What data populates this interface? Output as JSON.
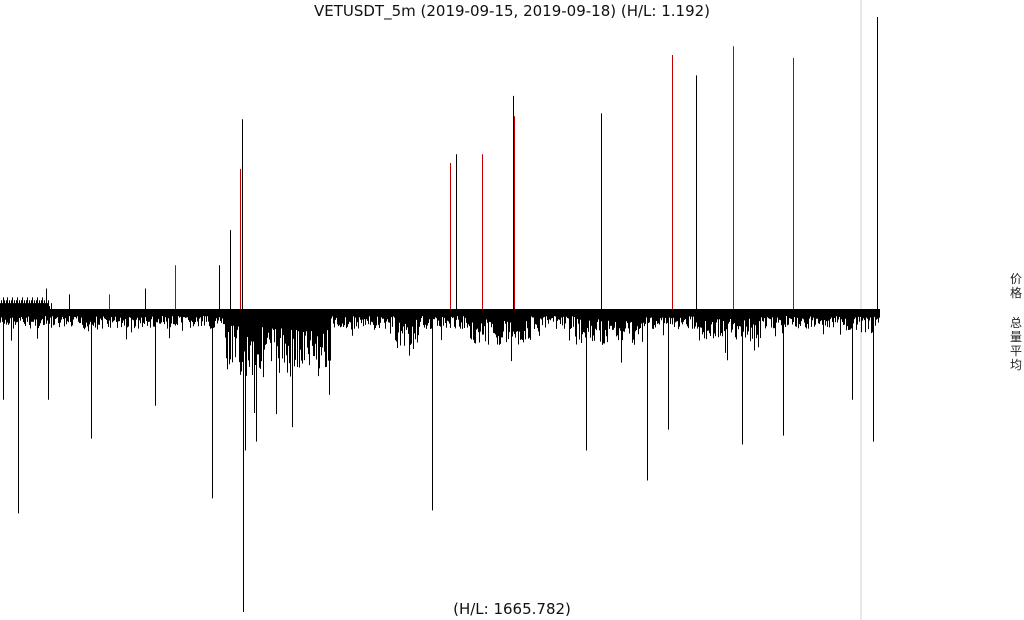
{
  "title": "VETUSDT_5m (2019-09-15, 2019-09-18) (H/L: 1.192)",
  "footer": "(H/L: 1665.782)",
  "side_labels": {
    "price": "价格",
    "volume": "总量平均"
  },
  "colors": {
    "up": "#000000",
    "down": "#c00000",
    "baseline": "#000000",
    "divider": "#d0d0d0"
  },
  "chart_data": [
    {
      "type": "bar",
      "panel": "price",
      "title": "VETUSDT_5m (2019-09-15, 2019-09-18) (H/L: 1.192)",
      "ylim": [
        0,
        1
      ],
      "values": [
        0.02,
        0.03,
        0.02,
        0.04,
        0.03,
        0.02,
        0.03,
        0.04,
        0.02,
        0.03,
        0.02,
        0.03,
        0.04,
        0.02,
        0.03,
        0.02,
        0.03,
        0.04,
        0.02,
        0.03,
        0.02,
        0.03,
        0.04,
        0.02,
        0.03,
        0.02,
        0.03,
        0.04,
        0.02,
        0.03,
        0.02,
        0.03,
        0.04,
        0.02,
        0.03,
        0.02,
        0.03,
        0.04,
        0.02,
        0.03,
        0.02,
        0.03,
        0.04,
        0.02,
        0.03,
        0.02,
        0.07,
        0.02,
        0.03,
        0.01,
        0.0,
        0.02
      ],
      "spikes": [
        {
          "i": 69,
          "v": 0.05,
          "c": "up"
        },
        {
          "i": 109,
          "v": 0.05,
          "c": "down"
        },
        {
          "i": 145,
          "v": 0.07,
          "c": "up"
        },
        {
          "i": 175,
          "v": 0.15,
          "c": "down"
        },
        {
          "i": 219,
          "v": 0.15,
          "c": "up"
        },
        {
          "i": 230,
          "v": 0.27,
          "c": "up"
        },
        {
          "i": 240,
          "v": 0.48,
          "c": "down"
        },
        {
          "i": 242,
          "v": 0.65,
          "c": "up"
        },
        {
          "i": 450,
          "v": 0.5,
          "c": "down"
        },
        {
          "i": 456,
          "v": 0.53,
          "c": "up"
        },
        {
          "i": 482,
          "v": 0.53,
          "c": "down"
        },
        {
          "i": 513,
          "v": 0.73,
          "c": "up"
        },
        {
          "i": 514,
          "v": 0.66,
          "c": "down"
        },
        {
          "i": 601,
          "v": 0.67,
          "c": "up"
        },
        {
          "i": 672,
          "v": 0.87,
          "c": "down"
        },
        {
          "i": 696,
          "v": 0.8,
          "c": "up"
        },
        {
          "i": 733,
          "v": 0.9,
          "c": "down"
        },
        {
          "i": 793,
          "v": 0.86,
          "c": "down"
        },
        {
          "i": 877,
          "v": 1.0,
          "c": "up"
        }
      ]
    },
    {
      "type": "bar",
      "panel": "volume",
      "title": "(H/L: 1665.782)",
      "ylim": [
        0,
        1
      ],
      "noise_seed": 7,
      "base_level": 0.04,
      "regions": [
        {
          "from": 225,
          "to": 330,
          "level": 0.16
        },
        {
          "from": 395,
          "to": 420,
          "level": 0.09
        },
        {
          "from": 470,
          "to": 530,
          "level": 0.08
        },
        {
          "from": 575,
          "to": 640,
          "level": 0.08
        },
        {
          "from": 700,
          "to": 760,
          "level": 0.07
        },
        {
          "from": 840,
          "to": 880,
          "level": 0.05
        }
      ],
      "spikes": [
        {
          "i": 3,
          "v": 0.29
        },
        {
          "i": 18,
          "v": 0.67
        },
        {
          "i": 48,
          "v": 0.29
        },
        {
          "i": 91,
          "v": 0.42
        },
        {
          "i": 155,
          "v": 0.31
        },
        {
          "i": 212,
          "v": 0.62
        },
        {
          "i": 243,
          "v": 1.0
        },
        {
          "i": 245,
          "v": 0.46
        },
        {
          "i": 256,
          "v": 0.43
        },
        {
          "i": 432,
          "v": 0.66
        },
        {
          "i": 586,
          "v": 0.46
        },
        {
          "i": 647,
          "v": 0.56
        },
        {
          "i": 668,
          "v": 0.39
        },
        {
          "i": 742,
          "v": 0.44
        },
        {
          "i": 783,
          "v": 0.41
        },
        {
          "i": 852,
          "v": 0.29
        },
        {
          "i": 873,
          "v": 0.43
        }
      ]
    }
  ]
}
